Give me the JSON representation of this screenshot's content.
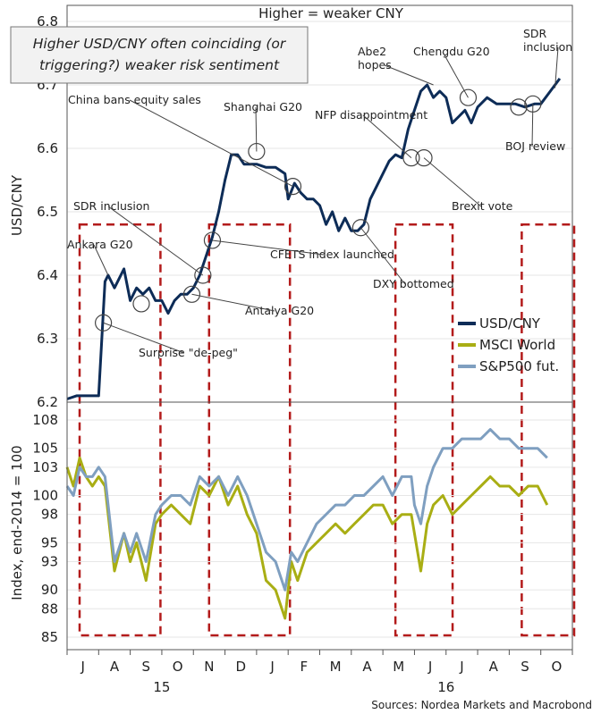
{
  "chart_data": {
    "type": "line",
    "top_title": "Higher = weaker CNY",
    "callout": [
      "Higher USD/CNY often coinciding  (or",
      "triggering?) weaker risk sentiment"
    ],
    "source": "Sources: Nordea Markets and Macrobond",
    "x_months": [
      "J",
      "A",
      "S",
      "O",
      "N",
      "D",
      "J",
      "F",
      "M",
      "A",
      "M",
      "J",
      "J",
      "A",
      "S",
      "O"
    ],
    "x_years": [
      {
        "label": "15",
        "after_month": 3
      },
      {
        "label": "16",
        "after_month": 12
      }
    ],
    "top_panel": {
      "ylabel": "USD/CNY",
      "ylim": [
        6.2,
        6.8
      ],
      "yticks": [
        "6.2",
        "6.3",
        "6.4",
        "6.5",
        "6.6",
        "6.7",
        "6.8"
      ],
      "series": {
        "name": "USD/CNY",
        "color": "#0d2c57",
        "x": [
          0,
          0.3,
          0.8,
          1.0,
          1.2,
          1.3,
          1.5,
          1.8,
          2.0,
          2.2,
          2.4,
          2.6,
          2.8,
          3.0,
          3.2,
          3.4,
          3.6,
          3.8,
          4.0,
          4.2,
          4.4,
          4.6,
          4.8,
          5.0,
          5.2,
          5.4,
          5.6,
          5.8,
          6.0,
          6.3,
          6.6,
          6.9,
          7.0,
          7.2,
          7.4,
          7.6,
          7.8,
          8.0,
          8.2,
          8.4,
          8.6,
          8.8,
          9.0,
          9.2,
          9.4,
          9.6,
          9.8,
          10.0,
          10.2,
          10.4,
          10.6,
          10.8,
          11.0,
          11.2,
          11.4,
          11.6,
          11.8,
          12.0,
          12.2,
          12.4,
          12.6,
          12.8,
          13.0,
          13.3,
          13.6,
          13.9,
          14.2,
          14.5,
          14.8,
          15.0,
          15.3,
          15.6
        ],
        "y": [
          6.205,
          6.21,
          6.21,
          6.21,
          6.39,
          6.4,
          6.38,
          6.41,
          6.36,
          6.38,
          6.37,
          6.38,
          6.36,
          6.36,
          6.34,
          6.36,
          6.37,
          6.37,
          6.38,
          6.4,
          6.43,
          6.46,
          6.5,
          6.55,
          6.59,
          6.59,
          6.575,
          6.575,
          6.575,
          6.57,
          6.57,
          6.56,
          6.52,
          6.545,
          6.53,
          6.52,
          6.52,
          6.51,
          6.48,
          6.5,
          6.47,
          6.49,
          6.47,
          6.47,
          6.48,
          6.52,
          6.54,
          6.56,
          6.58,
          6.59,
          6.585,
          6.63,
          6.66,
          6.69,
          6.7,
          6.68,
          6.69,
          6.68,
          6.64,
          6.65,
          6.66,
          6.64,
          6.665,
          6.68,
          6.67,
          6.67,
          6.67,
          6.665,
          6.67,
          6.67,
          6.69,
          6.71
        ]
      },
      "annotations": [
        {
          "label": "Ankara G20",
          "x": 1.3,
          "y": 6.4,
          "circle": false
        },
        {
          "label": "SDR inclusion",
          "x": 4.3,
          "y": 6.4,
          "circle": true
        },
        {
          "label": "Antalya G20",
          "x": 3.95,
          "y": 6.37,
          "circle": true
        },
        {
          "label": "Surprise \"de-peg\"",
          "x": 1.15,
          "y": 6.325,
          "circle": true
        },
        {
          "label": "China bans equity sales",
          "x": 7.15,
          "y": 6.54,
          "circle": true
        },
        {
          "label": "Shanghai G20",
          "x": 6.0,
          "y": 6.595,
          "circle": true
        },
        {
          "label": "CFETS index launched",
          "x": 4.6,
          "y": 6.455,
          "circle": true
        },
        {
          "label": "DXY bottomed",
          "x": 9.3,
          "y": 6.475,
          "circle": true
        },
        {
          "label": "NFP disappointment",
          "x": 10.9,
          "y": 6.585,
          "circle": true
        },
        {
          "label": "Brexit vote",
          "x": 11.3,
          "y": 6.585,
          "circle": true
        },
        {
          "label": "Abe2 hopes",
          "x": 11.6,
          "y": 6.7,
          "circle": false
        },
        {
          "label": "Chengdu G20",
          "x": 12.7,
          "y": 6.68,
          "circle": true
        },
        {
          "label": "SDR inclusion",
          "x": 15.45,
          "y": 6.695,
          "circle": false
        },
        {
          "label": "BOJ review",
          "x": 14.75,
          "y": 6.67,
          "circle": true
        },
        {
          "label": "",
          "x": 14.3,
          "y": 6.665,
          "circle": true
        },
        {
          "label": "",
          "x": 2.35,
          "y": 6.355,
          "circle": true
        }
      ]
    },
    "bottom_panel": {
      "ylabel": "Index, end-2014 = 100",
      "ylim": [
        85,
        108
      ],
      "yticks": [
        "85",
        "88",
        "90",
        "93",
        "95",
        "98",
        "100",
        "103",
        "105",
        "108"
      ],
      "series": [
        {
          "name": "MSCI World",
          "color": "#a9ae14",
          "x": [
            0,
            0.2,
            0.4,
            0.6,
            0.8,
            1.0,
            1.2,
            1.5,
            1.8,
            2.0,
            2.2,
            2.5,
            2.8,
            3.0,
            3.3,
            3.6,
            3.9,
            4.2,
            4.5,
            4.8,
            5.1,
            5.4,
            5.7,
            6.0,
            6.3,
            6.6,
            6.9,
            7.1,
            7.3,
            7.6,
            7.9,
            8.2,
            8.5,
            8.8,
            9.1,
            9.4,
            9.7,
            10.0,
            10.3,
            10.6,
            10.9,
            11.0,
            11.2,
            11.4,
            11.6,
            11.9,
            12.2,
            12.5,
            12.8,
            13.1,
            13.4,
            13.7,
            14.0,
            14.3,
            14.6,
            14.9,
            15.2
          ],
          "y": [
            103,
            101,
            104,
            102,
            101,
            102,
            101,
            92,
            96,
            93,
            95,
            91,
            97,
            98,
            99,
            98,
            97,
            101,
            100,
            102,
            99,
            101,
            98,
            96,
            91,
            90,
            87,
            93,
            91,
            94,
            95,
            96,
            97,
            96,
            97,
            98,
            99,
            99,
            97,
            98,
            98,
            96,
            92,
            97,
            99,
            100,
            98,
            99,
            100,
            101,
            102,
            101,
            101,
            100,
            101,
            101,
            99
          ]
        },
        {
          "name": "S&P500 fut.",
          "color": "#7f9fc0",
          "x": [
            0,
            0.2,
            0.4,
            0.6,
            0.8,
            1.0,
            1.2,
            1.5,
            1.8,
            2.0,
            2.2,
            2.5,
            2.8,
            3.0,
            3.3,
            3.6,
            3.9,
            4.2,
            4.5,
            4.8,
            5.1,
            5.4,
            5.7,
            6.0,
            6.3,
            6.6,
            6.9,
            7.1,
            7.3,
            7.6,
            7.9,
            8.2,
            8.5,
            8.8,
            9.1,
            9.4,
            9.7,
            10.0,
            10.3,
            10.6,
            10.9,
            11.0,
            11.2,
            11.4,
            11.6,
            11.9,
            12.2,
            12.5,
            12.8,
            13.1,
            13.4,
            13.7,
            14.0,
            14.3,
            14.6,
            14.9,
            15.2
          ],
          "y": [
            101,
            100,
            103,
            102,
            102,
            103,
            102,
            93,
            96,
            94,
            96,
            93,
            98,
            99,
            100,
            100,
            99,
            102,
            101,
            102,
            100,
            102,
            100,
            97,
            94,
            93,
            90,
            94,
            93,
            95,
            97,
            98,
            99,
            99,
            100,
            100,
            101,
            102,
            100,
            102,
            102,
            99,
            97,
            101,
            103,
            105,
            105,
            106,
            106,
            106,
            107,
            106,
            106,
            105,
            105,
            105,
            104
          ]
        }
      ]
    },
    "shaded_boxes": [
      {
        "x0": 0.0,
        "x1": 2.9
      },
      {
        "x0": 4.1,
        "x1": 7.0
      },
      {
        "x0": 10.0,
        "x1": 12.15
      },
      {
        "x0": 14.0,
        "x1": 16.0
      }
    ],
    "legend": [
      {
        "label": "USD/CNY",
        "color": "#0d2c57"
      },
      {
        "label": "MSCI World",
        "color": "#a9ae14"
      },
      {
        "label": "S&P500 fut.",
        "color": "#7f9fc0"
      }
    ]
  }
}
